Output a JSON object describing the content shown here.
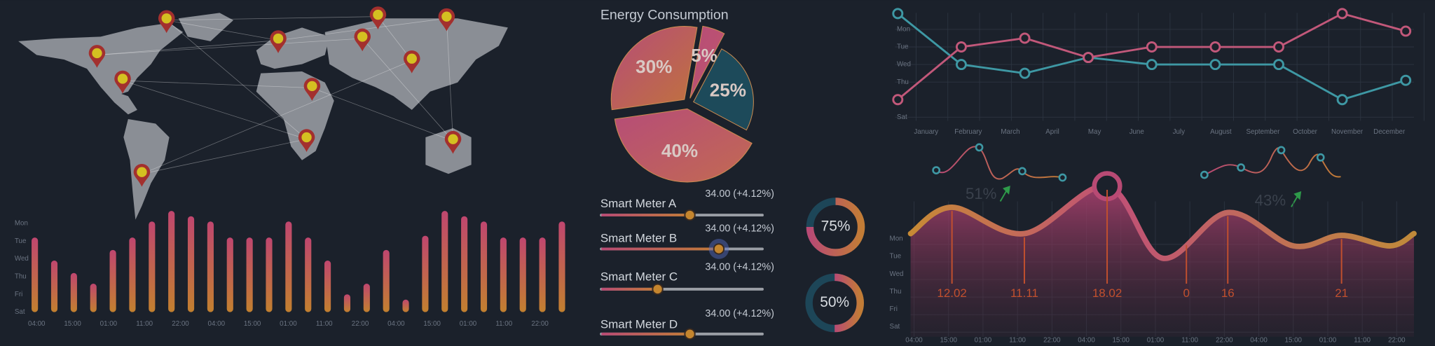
{
  "chart_data": [
    {
      "type": "bar",
      "values": [
        4.2,
        2.9,
        2.2,
        1.6,
        3.5,
        4.2,
        5.1,
        5.7,
        5.4,
        5.1,
        4.2,
        4.2,
        4.2,
        5.1,
        4.2,
        2.9,
        1.0,
        1.6,
        3.5,
        0.7,
        4.3,
        5.7,
        5.4,
        5.1,
        4.2,
        4.2,
        4.2,
        5.1
      ],
      "ylim": [
        0,
        6
      ],
      "yticks": [
        {
          "value": 5,
          "label": "Mon"
        },
        {
          "value": 4,
          "label": "Tue"
        },
        {
          "value": 3,
          "label": "Wed"
        },
        {
          "value": 2,
          "label": "Thu"
        },
        {
          "value": 1,
          "label": "Fri"
        },
        {
          "value": 0,
          "label": "Sat"
        }
      ],
      "x_labels": [
        "04:00",
        "15:00",
        "01:00",
        "11:00",
        "22:00",
        "04:00",
        "15:00",
        "01:00",
        "11:00",
        "22:00",
        "04:00",
        "15:00",
        "01:00",
        "11:00",
        "22:00"
      ]
    },
    {
      "type": "pie",
      "title": "Energy Consumption",
      "values": [
        30,
        5,
        25,
        40
      ],
      "value_labels": [
        "30%",
        "5%",
        "25%",
        "40%"
      ],
      "colors": [
        "#c0733c",
        "#c0566c",
        "#1d4a5a",
        "#c26a52"
      ]
    },
    {
      "type": "line",
      "x_labels": [
        "January",
        "February",
        "March",
        "April",
        "May",
        "June",
        "July",
        "August",
        "September",
        "October",
        "November",
        "December"
      ],
      "ylim": [
        0,
        6
      ],
      "yticks": [
        {
          "value": 5,
          "label": "Mon"
        },
        {
          "value": 4,
          "label": "Tue"
        },
        {
          "value": 3,
          "label": "Wed"
        },
        {
          "value": 2,
          "label": "Thu"
        },
        {
          "value": 0,
          "label": "Sat"
        }
      ],
      "series": [
        {
          "color": "#3e98a4",
          "values": [
            5.9,
            3.0,
            2.5,
            3.4,
            3.0,
            3.0,
            3.0,
            1.0,
            2.1
          ]
        },
        {
          "color": "#c2587a",
          "values": [
            1.0,
            4.0,
            4.5,
            3.4,
            4.0,
            4.0,
            4.0,
            5.9,
            4.9
          ]
        }
      ]
    },
    {
      "type": "area",
      "x": [
        -0.1,
        1.1,
        3.2,
        5.6,
        7.2,
        9.1,
        11.0,
        12.4,
        13.8,
        14.5
      ],
      "values": [
        5.3,
        6.8,
        5.3,
        8.0,
        3.9,
        6.5,
        4.6,
        5.2,
        4.6,
        5.3
      ],
      "xlim": [
        -0.1,
        14.5
      ],
      "ylim": [
        0,
        9
      ],
      "yticks": [
        {
          "value": 5,
          "label": "Mon"
        },
        {
          "value": 4,
          "label": "Tue"
        },
        {
          "value": 3,
          "label": "Wed"
        },
        {
          "value": 2,
          "label": "Thu"
        },
        {
          "value": 1,
          "label": "Fri"
        },
        {
          "value": 0,
          "label": "Sat"
        }
      ],
      "xticks": [
        {
          "value": 0,
          "label": "04:00"
        },
        {
          "value": 1,
          "label": "15:00"
        },
        {
          "value": 2,
          "label": "01:00"
        },
        {
          "value": 3,
          "label": "11:00"
        },
        {
          "value": 4,
          "label": "22:00"
        },
        {
          "value": 5,
          "label": "04:00"
        },
        {
          "value": 6,
          "label": "15:00"
        },
        {
          "value": 7,
          "label": "01:00"
        },
        {
          "value": 8,
          "label": "11:00"
        },
        {
          "value": 9,
          "label": "22:00"
        },
        {
          "value": 10,
          "label": "04:00"
        },
        {
          "value": 11,
          "label": "15:00"
        },
        {
          "value": 12,
          "label": "01:00"
        },
        {
          "value": 13,
          "label": "11:00"
        },
        {
          "value": 14,
          "label": "22:00"
        }
      ],
      "annotations": [
        {
          "label": "12.02",
          "x": 1.1
        },
        {
          "label": "11.11",
          "x": 3.2
        },
        {
          "label": "18.02",
          "x": 5.6
        },
        {
          "label": "0",
          "x": 7.9
        },
        {
          "label": "16",
          "x": 9.1
        },
        {
          "label": "21",
          "x": 12.4
        }
      ],
      "callouts": [
        "51%",
        "43%"
      ]
    },
    {
      "type": "donut",
      "values": [
        75,
        50
      ],
      "value_labels": [
        "75%",
        "50%"
      ]
    }
  ],
  "meters": [
    {
      "label": "Smart Meter A",
      "reading": "34.00 (+4.12%)",
      "level": 55
    },
    {
      "label": "Smart Meter B",
      "reading": "34.00 (+4.12%)",
      "level": 73
    },
    {
      "label": "Smart Meter C",
      "reading": "34.00 (+4.12%)",
      "level": 35
    },
    {
      "label": "Smart Meter D",
      "reading": "34.00 (+4.12%)",
      "level": 55
    }
  ]
}
